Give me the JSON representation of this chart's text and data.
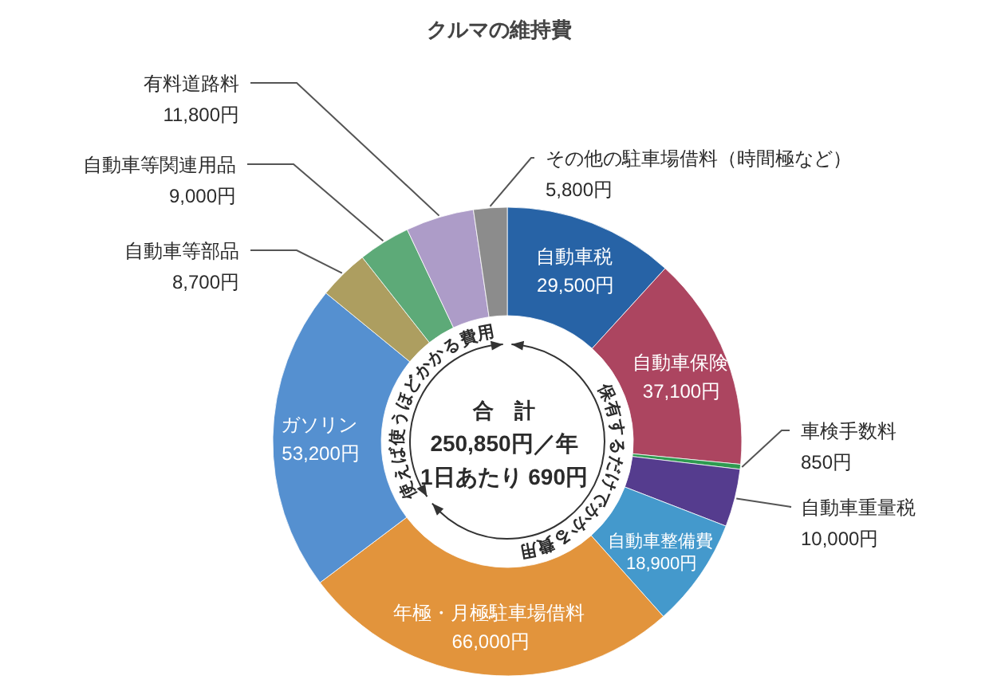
{
  "chart_data": {
    "type": "donut",
    "title": "クルマの維持費",
    "categories": [
      "自動車税",
      "自動車保険",
      "車検手数料",
      "自動車重量税",
      "自動車整備費",
      "年極・月極駐車場借料",
      "ガソリン",
      "自動車等部品",
      "自動車等関連用品",
      "有料道路料",
      "その他の駐車場借料（時間極など）"
    ],
    "values": [
      29500,
      37100,
      850,
      10000,
      18900,
      66000,
      53200,
      8700,
      9000,
      11800,
      5800
    ],
    "value_labels": [
      "29,500円",
      "37,100円",
      "850円",
      "10,000円",
      "18,900円",
      "66,000円",
      "53,200円",
      "8,700円",
      "9,000円",
      "11,800円",
      "5,800円"
    ],
    "colors": [
      "#2763a6",
      "#ac4560",
      "#2e9a50",
      "#553c8e",
      "#4499cc",
      "#e2943c",
      "#5590d0",
      "#ad9e60",
      "#5daa78",
      "#ad9cc8",
      "#8c8c8c"
    ],
    "annotations": [
      "合　計",
      "250,850円／年",
      "1日あたり 690円",
      "保有するだけでかかる費用",
      "使えば使うほどかかる費用"
    ]
  }
}
